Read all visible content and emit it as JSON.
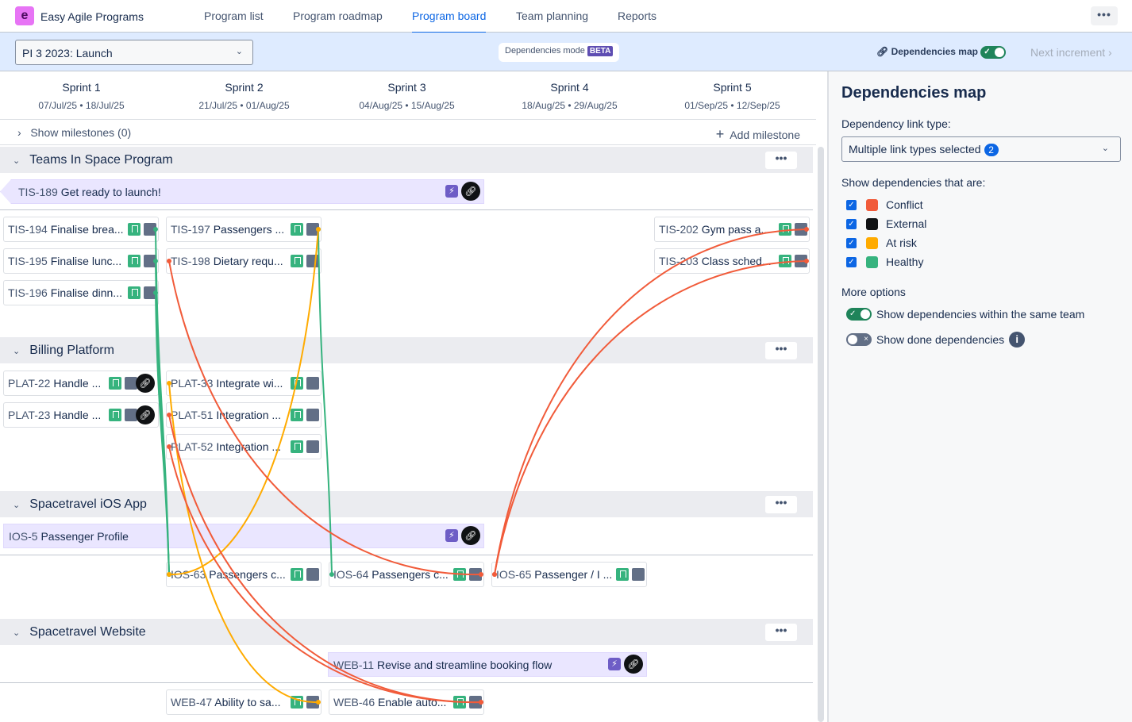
{
  "app": {
    "name": "Easy Agile Programs",
    "logo_letter": "e"
  },
  "nav": {
    "items": [
      "Program list",
      "Program roadmap",
      "Program board",
      "Team planning",
      "Reports"
    ],
    "active": "Program board",
    "more": "•••"
  },
  "toolbar": {
    "increment": "PI 3 2023: Launch",
    "dependencies_mode": "Dependencies mode",
    "beta": "BETA",
    "dependencies_map": "Dependencies map",
    "dependencies_map_on": true,
    "next_increment": "Next increment ›"
  },
  "sprints": [
    {
      "name": "Sprint 1",
      "dates": "07/Jul/25 • 18/Jul/25"
    },
    {
      "name": "Sprint 2",
      "dates": "21/Jul/25 • 01/Aug/25"
    },
    {
      "name": "Sprint 3",
      "dates": "04/Aug/25 • 15/Aug/25"
    },
    {
      "name": "Sprint 4",
      "dates": "18/Aug/25 • 29/Aug/25"
    },
    {
      "name": "Sprint 5",
      "dates": "01/Sep/25 • 12/Sep/25"
    }
  ],
  "milestones": {
    "show": "Show milestones (0)",
    "add": "Add milestone"
  },
  "teams": [
    {
      "name": "Teams In Space Program",
      "epic": {
        "key": "TIS-189",
        "title": "Get ready to launch!"
      },
      "cards": [
        {
          "id": "TIS-194",
          "key": "TIS-194",
          "title": "Finalise brea...",
          "sprint": 0,
          "row": 0
        },
        {
          "id": "TIS-195",
          "key": "TIS-195",
          "title": "Finalise lunc...",
          "sprint": 0,
          "row": 1
        },
        {
          "id": "TIS-196",
          "key": "TIS-196",
          "title": "Finalise dinn...",
          "sprint": 0,
          "row": 2
        },
        {
          "id": "TIS-197",
          "key": "TIS-197",
          "title": "Passengers ...",
          "sprint": 1,
          "row": 0
        },
        {
          "id": "TIS-198",
          "key": "TIS-198",
          "title": "Dietary requ...",
          "sprint": 1,
          "row": 1
        },
        {
          "id": "TIS-202",
          "key": "TIS-202",
          "title": "Gym pass a...",
          "sprint": 4,
          "row": 0
        },
        {
          "id": "TIS-203",
          "key": "TIS-203",
          "title": "Class sched...",
          "sprint": 4,
          "row": 1
        }
      ]
    },
    {
      "name": "Billing Platform",
      "cards": [
        {
          "id": "PLAT-22",
          "key": "PLAT-22",
          "title": "Handle ...",
          "sprint": 0,
          "row": 0,
          "external": true
        },
        {
          "id": "PLAT-23",
          "key": "PLAT-23",
          "title": "Handle ...",
          "sprint": 0,
          "row": 1,
          "external": true
        },
        {
          "id": "PLAT-33",
          "key": "PLAT-33",
          "title": "Integrate wi...",
          "sprint": 1,
          "row": 0
        },
        {
          "id": "PLAT-51",
          "key": "PLAT-51",
          "title": "Integration ...",
          "sprint": 1,
          "row": 1
        },
        {
          "id": "PLAT-52",
          "key": "PLAT-52",
          "title": "Integration ...",
          "sprint": 1,
          "row": 2
        }
      ]
    },
    {
      "name": "Spacetravel iOS App",
      "epic": {
        "key": "IOS-5",
        "title": "Passenger Profile"
      },
      "cards": [
        {
          "id": "IOS-63",
          "key": "IOS-63",
          "title": "Passengers c...",
          "sprint": 1,
          "row": 0
        },
        {
          "id": "IOS-64",
          "key": "IOS-64",
          "title": "Passengers c...",
          "sprint": 2,
          "row": 0
        },
        {
          "id": "IOS-65",
          "key": "IOS-65",
          "title": "Passenger / I ...",
          "sprint": 3,
          "row": 0
        }
      ]
    },
    {
      "name": "Spacetravel Website",
      "epic": {
        "key": "WEB-11",
        "title": "Revise and streamline booking flow"
      },
      "cards": [
        {
          "id": "WEB-47",
          "key": "WEB-47",
          "title": "Ability to sa...",
          "sprint": 1,
          "row": 0
        },
        {
          "id": "WEB-46",
          "key": "WEB-46",
          "title": "Enable auto...",
          "sprint": 2,
          "row": 0
        }
      ]
    }
  ],
  "dependencies": [
    {
      "from": "TIS-194",
      "to": "IOS-63",
      "status": "healthy"
    },
    {
      "from": "TIS-195",
      "to": "IOS-63",
      "status": "healthy"
    },
    {
      "from": "TIS-196",
      "to": "IOS-63",
      "status": "healthy"
    },
    {
      "from": "TIS-197",
      "to": "IOS-64",
      "status": "healthy"
    },
    {
      "from": "TIS-197",
      "to": "IOS-63",
      "status": "at-risk"
    },
    {
      "from": "PLAT-33",
      "to": "WEB-47",
      "status": "at-risk"
    },
    {
      "from": "TIS-198",
      "to": "IOS-64",
      "status": "conflict"
    },
    {
      "from": "PLAT-51",
      "to": "WEB-46",
      "status": "conflict"
    },
    {
      "from": "PLAT-52",
      "to": "WEB-46",
      "status": "conflict"
    },
    {
      "from": "IOS-65",
      "to": "TIS-202",
      "status": "conflict"
    },
    {
      "from": "IOS-65",
      "to": "TIS-203",
      "status": "conflict"
    }
  ],
  "colors": {
    "conflict": "#f15b3a",
    "external": "#101214",
    "at-risk": "#ffab00",
    "healthy": "#36b37e",
    "accent": "#0c66e4"
  },
  "panel": {
    "title": "Dependencies map",
    "link_type_label": "Dependency link type:",
    "link_type_value": "Multiple link types selected",
    "link_type_count": "2",
    "show_label": "Show dependencies that are:",
    "filters": [
      {
        "label": "Conflict",
        "checked": true,
        "color": "#f15b3a"
      },
      {
        "label": "External",
        "checked": true,
        "color": "#101214"
      },
      {
        "label": "At risk",
        "checked": true,
        "color": "#ffab00"
      },
      {
        "label": "Healthy",
        "checked": true,
        "color": "#36b37e"
      }
    ],
    "more_options": "More options",
    "options": [
      {
        "label": "Show dependencies within the same team",
        "on": true
      },
      {
        "label": "Show done dependencies",
        "on": false
      }
    ]
  }
}
